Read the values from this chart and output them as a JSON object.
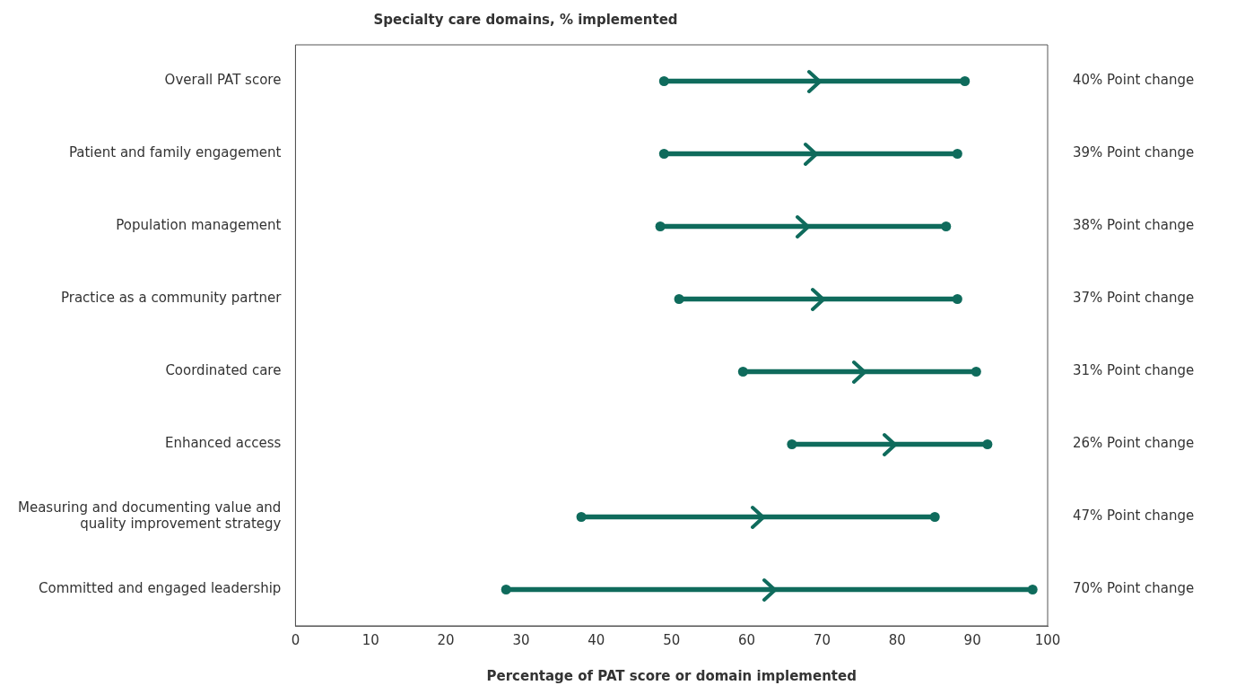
{
  "chart_data": {
    "type": "bar",
    "orientation": "horizontal",
    "title": "Specialty care domains, % implemented",
    "xlabel": "Percentage of PAT score or domain implemented",
    "categories": [
      "Overall PAT score",
      "Patient and family engagement",
      "Population management",
      "Practice as a community partner",
      "Coordinated care",
      "Enhanced access",
      "Measuring and documenting value and quality improvement strategy",
      "Committed and engaged leadership"
    ],
    "series": [
      {
        "type": "bar",
        "color": "#0f6b5c",
        "base": [
          49,
          49,
          48.5,
          51,
          59.5,
          66,
          38,
          28
        ],
        "values": [
          40,
          39,
          38,
          37,
          31,
          26,
          47,
          70
        ],
        "value_labels": [
          "40% Point change",
          "39% Point change",
          "38% Point change",
          "37% Point change",
          "31% Point change",
          "26% Point change",
          "47% Point change",
          "70% Point change"
        ]
      },
      {
        "type": "scatter",
        "color": "#0f6b5c",
        "values": [
          49,
          49,
          48.5,
          51,
          59.5,
          66,
          38,
          28
        ]
      },
      {
        "type": "scatter",
        "color": "#0f6b5c",
        "values": [
          89,
          88,
          86.5,
          88,
          90.5,
          92,
          85,
          98
        ]
      }
    ],
    "marker": "circle",
    "grid": false,
    "legend": false,
    "xlim": [
      0,
      100
    ],
    "xticks": [
      0,
      10,
      20,
      30,
      40,
      50,
      60,
      70,
      80,
      90,
      100
    ]
  }
}
